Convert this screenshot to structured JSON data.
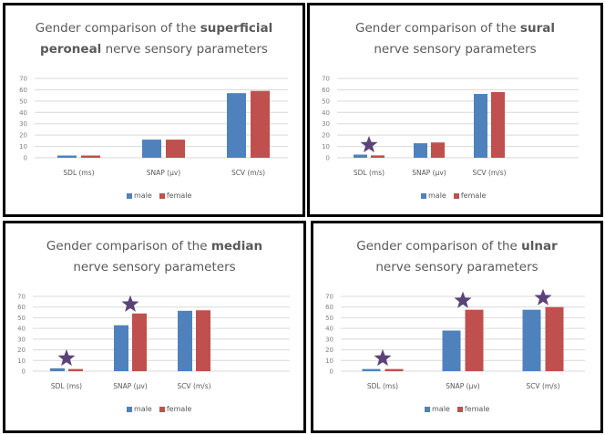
{
  "colors": {
    "male": "#4F81BD",
    "female": "#C0504D",
    "star": "#5B4379",
    "grid": "#D9D9D9"
  },
  "chart_data": [
    {
      "type": "bar",
      "title_prefix": "Gender comparison of the ",
      "title_bold": "superficial peroneal",
      "title_suffix": " nerve sensory parameters",
      "title_lines": [
        {
          "pre": "Gender comparison of the ",
          "bold": "superficial",
          "post": ""
        },
        {
          "pre": "",
          "bold": "peroneal",
          "post": " nerve sensory parameters"
        }
      ],
      "categories": [
        "SDL (ms)",
        "SNAP  (µv)",
        "SCV (m/s)"
      ],
      "series": [
        {
          "name": "male",
          "values": [
            2,
            16,
            57
          ]
        },
        {
          "name": "female",
          "values": [
            2,
            16,
            59
          ]
        }
      ],
      "significance_stars": [],
      "ylim": [
        0,
        70
      ],
      "yticks": [
        0,
        10,
        20,
        30,
        40,
        50,
        60,
        70
      ],
      "grid": true,
      "legend": "bottom",
      "xlabel": "",
      "ylabel": ""
    },
    {
      "type": "bar",
      "title_lines": [
        {
          "pre": "Gender comparison of the ",
          "bold": "sural",
          "post": ""
        },
        {
          "pre": "nerve sensory parameters",
          "bold": "",
          "post": ""
        }
      ],
      "categories": [
        "SDL (ms)",
        "SNAP  (µv)",
        "SCV (m/s)"
      ],
      "series": [
        {
          "name": "male",
          "values": [
            2.8,
            12.8,
            56.3
          ]
        },
        {
          "name": "female",
          "values": [
            2.1,
            13.5,
            58
          ]
        }
      ],
      "significance_stars": [
        "SDL (ms)"
      ],
      "ylim": [
        0,
        70
      ],
      "yticks": [
        0,
        10,
        20,
        30,
        40,
        50,
        60,
        70
      ],
      "grid": true,
      "legend": "bottom",
      "xlabel": "",
      "ylabel": ""
    },
    {
      "type": "bar",
      "title_lines": [
        {
          "pre": "Gender comparison of the ",
          "bold": "median",
          "post": ""
        },
        {
          "pre": "nerve sensory parameters",
          "bold": "",
          "post": ""
        }
      ],
      "categories": [
        "SDL (ms)",
        "SNAP  (µv)",
        "SCV (m/s)"
      ],
      "series": [
        {
          "name": "male",
          "values": [
            2.7,
            43,
            56.5
          ]
        },
        {
          "name": "female",
          "values": [
            2,
            54,
            57
          ]
        }
      ],
      "significance_stars": [
        "SDL (ms)",
        "SNAP  (µv)"
      ],
      "ylim": [
        0,
        70
      ],
      "yticks": [
        0,
        10,
        20,
        30,
        40,
        50,
        60,
        70
      ],
      "grid": true,
      "legend": "bottom",
      "xlabel": "",
      "ylabel": ""
    },
    {
      "type": "bar",
      "title_lines": [
        {
          "pre": "Gender comparison of the ",
          "bold": "ulnar",
          "post": ""
        },
        {
          "pre": "nerve sensory parameters",
          "bold": "",
          "post": ""
        }
      ],
      "categories": [
        "SDL (ms)",
        "SNAP  (µv)",
        "SCV (m/s)"
      ],
      "series": [
        {
          "name": "male",
          "values": [
            2,
            38,
            57.5
          ]
        },
        {
          "name": "female",
          "values": [
            2,
            57.5,
            60
          ]
        }
      ],
      "significance_stars": [
        "SDL (ms)",
        "SNAP  (µv)",
        "SCV (m/s)"
      ],
      "ylim": [
        0,
        70
      ],
      "yticks": [
        0,
        10,
        20,
        30,
        40,
        50,
        60,
        70
      ],
      "grid": true,
      "legend": "bottom",
      "xlabel": "",
      "ylabel": ""
    }
  ]
}
